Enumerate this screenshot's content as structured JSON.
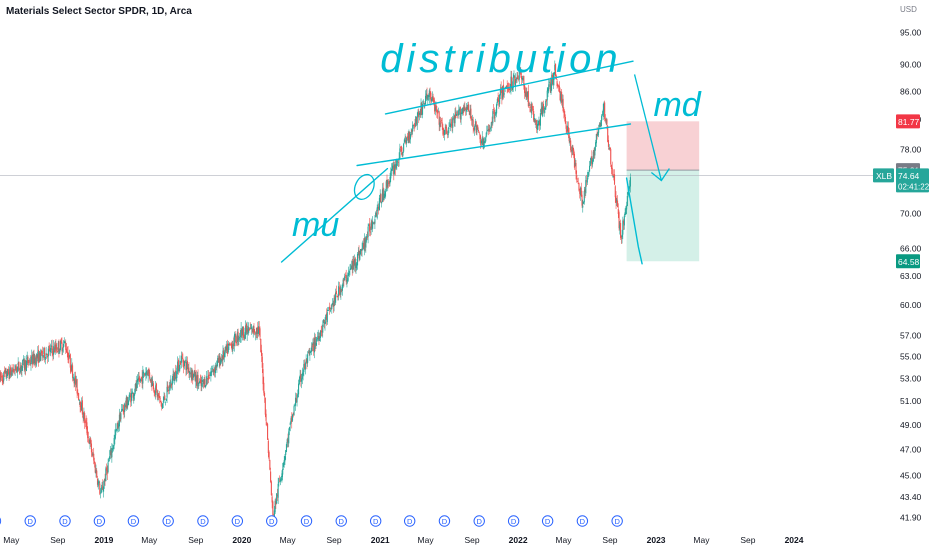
{
  "header": {
    "title": "Materials Select Sector SPDR, 1D, Arca"
  },
  "price_axis": {
    "currency": "USD",
    "ticks": [
      "95.00",
      "90.00",
      "86.00",
      "82.00",
      "78.00",
      "74.00",
      "70.00",
      "66.00",
      "63.00",
      "60.00",
      "57.00",
      "55.00",
      "53.00",
      "51.00",
      "49.00",
      "47.00",
      "45.00",
      "43.40",
      "41.90"
    ]
  },
  "time_axis": {
    "labels": [
      "May",
      "Sep",
      "2019",
      "May",
      "Sep",
      "2020",
      "May",
      "Sep",
      "2021",
      "May",
      "Sep",
      "2022",
      "May",
      "Sep",
      "2023",
      "May",
      "Sep",
      "2024"
    ]
  },
  "price_labels": {
    "stop": "81.77",
    "entry": "75.31",
    "symbol": "XLB",
    "last": "74.64",
    "countdown": "02:41:22",
    "target": "64.58"
  },
  "annotations": {
    "top": "distribution",
    "left": "mu",
    "right": "md"
  },
  "dividends": {
    "marker": "D",
    "count": 19
  },
  "colors": {
    "up": "#26a69a",
    "down": "#ef5350",
    "drawing": "#00bcd4",
    "stop_zone": "#f7c9cc",
    "target_zone": "#cfeee6",
    "stop_label": "#f23645",
    "target_label": "#089981",
    "last_label": "#26a69a",
    "entry_label": "#787b86",
    "dividend": "#2962ff"
  },
  "chart_data": {
    "type": "candlestick",
    "title": "Materials Select Sector SPDR, 1D, Arca",
    "y_unit": "USD",
    "y_scale": "log",
    "ylim": [
      41.6,
      98.0
    ],
    "xlim": [
      "2018-04-01",
      "2024-07-20"
    ],
    "grid": false,
    "price_path": [
      [
        "2018-04-01",
        53.0
      ],
      [
        "2018-06-15",
        54.5
      ],
      [
        "2018-09-20",
        56.2
      ],
      [
        "2018-10-30",
        51.0
      ],
      [
        "2018-12-24",
        43.5
      ],
      [
        "2019-02-15",
        50.0
      ],
      [
        "2019-04-25",
        53.8
      ],
      [
        "2019-06-03",
        50.6
      ],
      [
        "2019-07-25",
        54.8
      ],
      [
        "2019-09-15",
        52.3
      ],
      [
        "2019-12-30",
        57.3
      ],
      [
        "2020-02-15",
        57.6
      ],
      [
        "2020-03-23",
        41.9
      ],
      [
        "2020-06-08",
        53.5
      ],
      [
        "2020-09-15",
        61.5
      ],
      [
        "2020-11-15",
        66.0
      ],
      [
        "2021-01-05",
        72.0
      ],
      [
        "2021-05-10",
        85.8
      ],
      [
        "2021-06-20",
        80.0
      ],
      [
        "2021-08-15",
        84.0
      ],
      [
        "2021-10-01",
        78.5
      ],
      [
        "2021-11-15",
        85.5
      ],
      [
        "2022-01-05",
        88.7
      ],
      [
        "2022-02-20",
        80.8
      ],
      [
        "2022-04-08",
        89.0
      ],
      [
        "2022-05-20",
        78.6
      ],
      [
        "2022-06-20",
        71.4
      ],
      [
        "2022-08-16",
        83.5
      ],
      [
        "2022-09-30",
        67.0
      ],
      [
        "2022-10-26",
        74.64
      ]
    ],
    "dividend_dates": [
      "2018-03-20",
      "2018-06-20",
      "2018-09-20",
      "2018-12-20",
      "2019-03-20",
      "2019-06-20",
      "2019-09-20",
      "2019-12-20",
      "2020-03-20",
      "2020-06-20",
      "2020-09-20",
      "2020-12-20",
      "2021-03-20",
      "2021-06-20",
      "2021-09-20",
      "2021-12-20",
      "2022-03-20",
      "2022-06-20",
      "2022-09-20"
    ],
    "position": {
      "side": "short",
      "start": "2022-10-15",
      "end": "2023-04-25",
      "entry": 75.31,
      "stop": 81.77,
      "target": 64.58
    },
    "trendlines": {
      "distribution_upper": [
        [
          "2021-01-15",
          82.8
        ],
        [
          "2022-11-01",
          90.5
        ]
      ],
      "distribution_lower": [
        [
          "2020-11-01",
          75.9
        ],
        [
          "2022-10-25",
          81.4
        ]
      ],
      "markup": [
        [
          "2020-04-15",
          64.5
        ],
        [
          "2021-01-20",
          75.5
        ]
      ],
      "projection": [
        [
          "2022-10-15",
          74.3
        ],
        [
          "2022-11-15",
          66.2
        ],
        [
          "2022-11-25",
          64.3
        ]
      ]
    }
  }
}
